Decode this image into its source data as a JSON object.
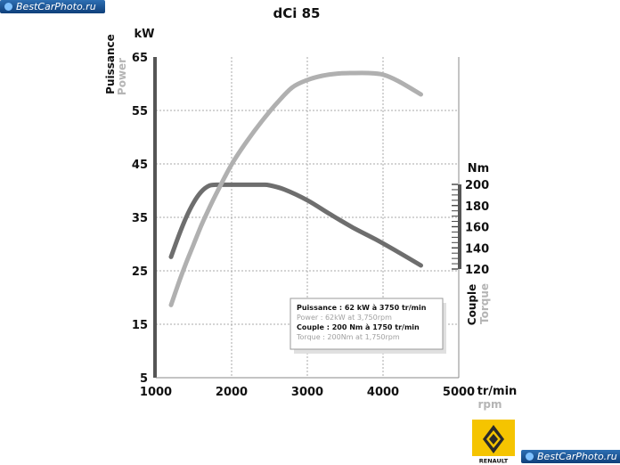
{
  "watermarks": {
    "top": "BestCarPhoto.ru",
    "bottom": "BestCarPhoto.ru"
  },
  "brand": {
    "name": "RENAULT"
  },
  "colors": {
    "power": "#6e6e6e",
    "torque": "#b0b0b0",
    "axis": "#555555",
    "grid": "#a8a8a8"
  },
  "chart_data": {
    "type": "line",
    "title": "dCi 85",
    "xlabel": "tr/min",
    "xlabel_en": "rpm",
    "xlim": [
      1000,
      5000
    ],
    "x_ticks": [
      "1000",
      "2000",
      "3000",
      "4000",
      "5000"
    ],
    "left_axis": {
      "unit": "kW",
      "label": "Puissance",
      "label_en": "Power",
      "range": [
        5,
        65
      ],
      "ticks": [
        "65",
        "55",
        "45",
        "35",
        "25",
        "15",
        "5"
      ]
    },
    "right_axis": {
      "unit": "Nm",
      "label": "Couple",
      "label_en": "Torque",
      "range": [
        120,
        200
      ],
      "ticks": [
        "200",
        "180",
        "160",
        "140",
        "120"
      ]
    },
    "series": [
      {
        "name": "Puissance",
        "axis": "left",
        "x": [
          1200,
          1300,
          1400,
          1500,
          1600,
          1700,
          1800,
          2000,
          2200,
          2400,
          2600,
          2800,
          3000,
          3200,
          3400,
          3600,
          3800,
          4000,
          4200,
          4500
        ],
        "y": [
          18.6,
          22.7,
          26.5,
          30.0,
          33.5,
          36.6,
          39.5,
          44.9,
          49.2,
          53.0,
          56.4,
          59.3,
          60.7,
          61.5,
          61.9,
          62.0,
          62.0,
          61.7,
          60.5,
          58.0
        ]
      },
      {
        "name": "Couple",
        "axis": "left",
        "x": [
          1200,
          1300,
          1400,
          1500,
          1600,
          1700,
          1800,
          2000,
          2200,
          2400,
          2500,
          2700,
          3000,
          3300,
          3600,
          3900,
          4200,
          4500
        ],
        "y": [
          27.6,
          31.5,
          35.0,
          37.8,
          39.8,
          40.9,
          41.1,
          41.1,
          41.1,
          41.1,
          41.0,
          40.2,
          38.2,
          35.6,
          33.1,
          30.9,
          28.5,
          26.0
        ]
      }
    ],
    "annotation": [
      {
        "text": "Puissance : 62 kW à 3750 tr/min",
        "style": "bold"
      },
      {
        "text": "Power : 62kW at 3,750rpm",
        "style": "muted"
      },
      {
        "text": "Couple : 200 Nm à 1750 tr/min",
        "style": "bold"
      },
      {
        "text": "Torque : 200Nm at 1,750rpm",
        "style": "muted"
      }
    ],
    "grid": true
  }
}
